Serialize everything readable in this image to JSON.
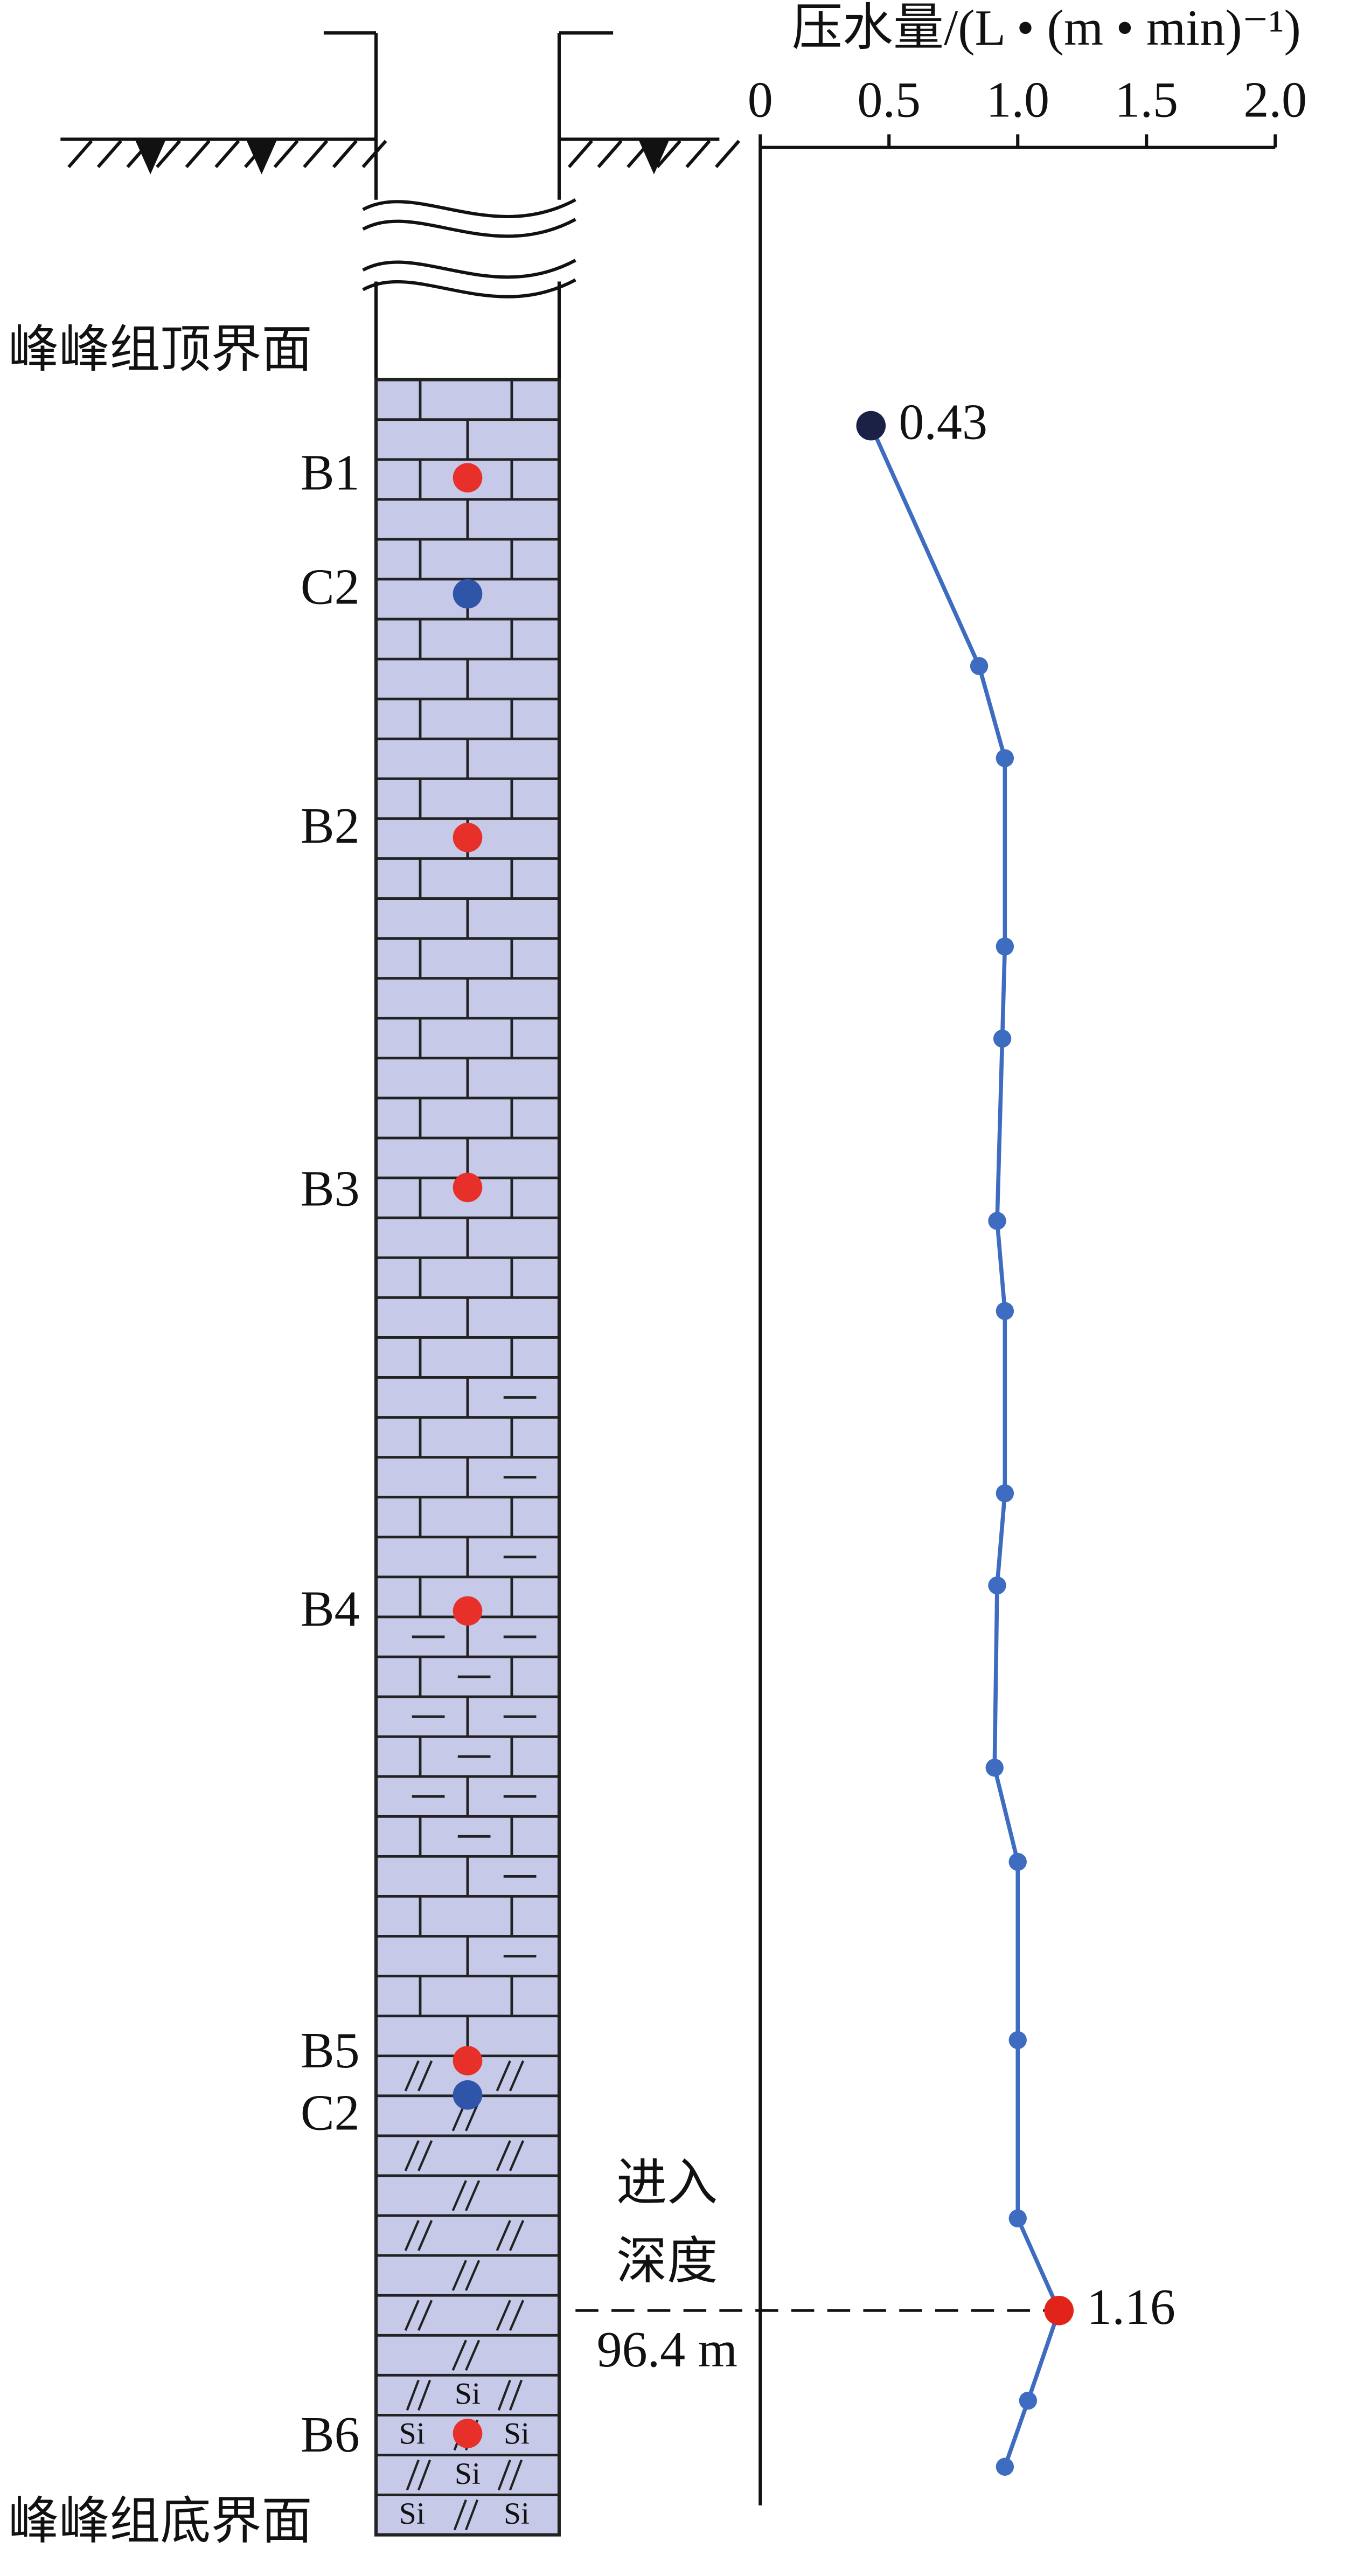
{
  "chart_data": {
    "type": "line",
    "title": "压水量/(L • (m • min)⁻¹)",
    "xlim": [
      0,
      2
    ],
    "xticks": [
      0,
      0.5,
      {
        "value": 1,
        "label": "1.0"
      },
      1.5,
      {
        "value": 2,
        "label": "2.0"
      }
    ],
    "ylim": [
      0,
      107.6
    ],
    "y_reversed": true,
    "line_color": "#3d6cc0",
    "values": [
      0.43,
      0.85,
      0.95,
      0.95,
      0.94,
      0.92,
      0.95,
      0.95,
      0.92,
      0.91,
      1.0,
      1.0,
      1.0,
      1.16,
      1.04,
      0.95
    ],
    "depths": [
      2.3,
      14.3,
      18.9,
      28.3,
      32.9,
      42.0,
      46.5,
      55.6,
      60.2,
      69.3,
      74.0,
      82.9,
      91.8,
      96.4,
      100.9,
      104.2
    ],
    "point_colors": [
      "#1b2145",
      "#3d6cc0",
      "#3d6cc0",
      "#3d6cc0",
      "#3d6cc0",
      "#3d6cc0",
      "#3d6cc0",
      "#3d6cc0",
      "#3d6cc0",
      "#3d6cc0",
      "#3d6cc0",
      "#3d6cc0",
      "#3d6cc0",
      "#e2231a",
      "#3d6cc0",
      "#3d6cc0"
    ],
    "labeled_points": [
      0,
      13
    ],
    "annotation": {
      "text": [
        "进入",
        "深度"
      ],
      "depth": 96.4,
      "label": "96.4 m"
    },
    "column": {
      "top_label": "峰峰组顶界面",
      "bottom_label": "峰峰组底界面",
      "fill": "#c6c9e8",
      "si": "Si",
      "samples": [
        {
          "label": "B1",
          "color": "#e8302a"
        },
        {
          "label": "C2",
          "color": "#2f55a8"
        },
        {
          "label": "B2",
          "color": "#e8302a"
        },
        {
          "label": "B3",
          "color": "#e8302a"
        },
        {
          "label": "B4",
          "color": "#e8302a"
        },
        {
          "label": "B5",
          "color": "#e8302a"
        },
        {
          "label": "C2",
          "color": "#2f55a8"
        },
        {
          "label": "B6",
          "color": "#e8302a"
        }
      ]
    }
  }
}
